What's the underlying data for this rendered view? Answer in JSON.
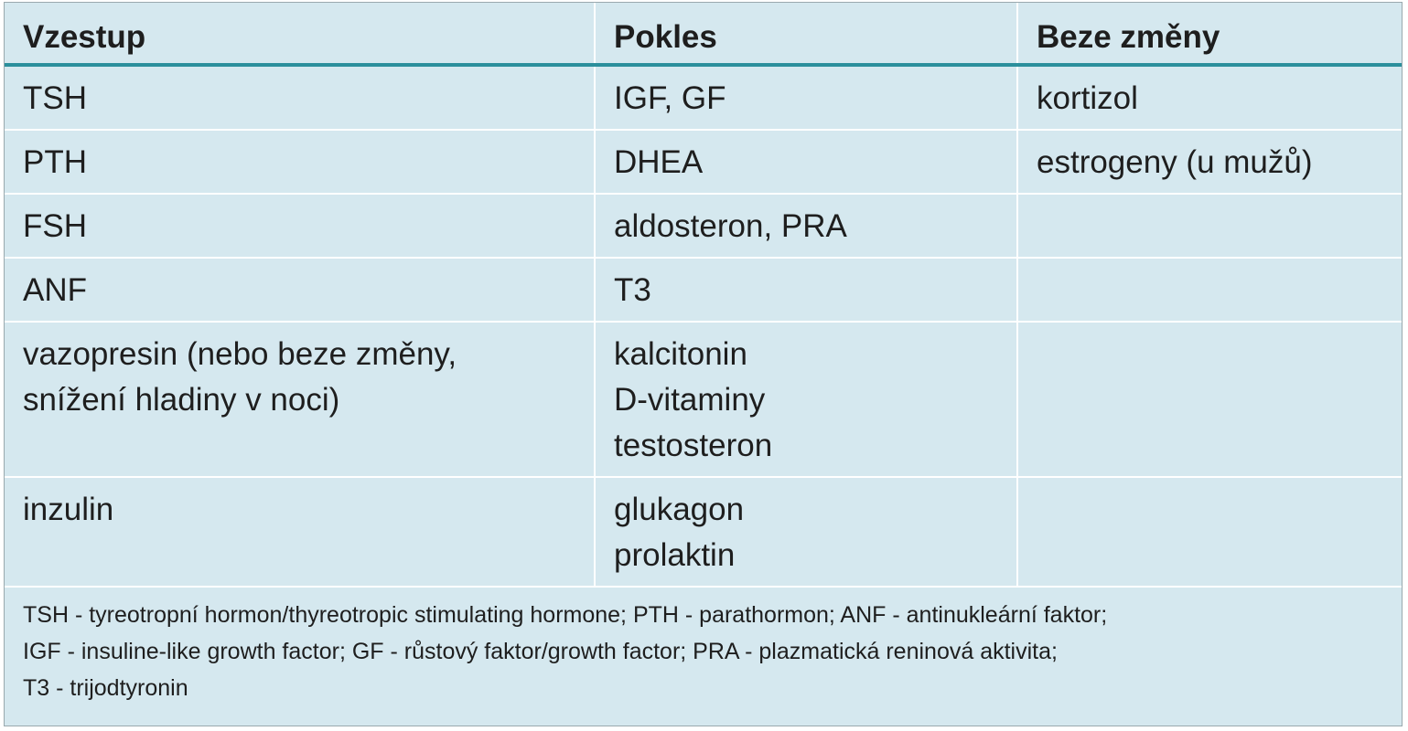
{
  "table": {
    "header": [
      "Vzestup",
      "Pokles",
      "Beze změny"
    ],
    "rows": [
      [
        [
          "TSH"
        ],
        [
          "IGF, GF"
        ],
        [
          "kortizol"
        ]
      ],
      [
        [
          "PTH"
        ],
        [
          "DHEA"
        ],
        [
          "estrogeny (u mužů)"
        ]
      ],
      [
        [
          "FSH"
        ],
        [
          "aldosteron, PRA"
        ],
        []
      ],
      [
        [
          "ANF"
        ],
        [
          "T3"
        ],
        []
      ],
      [
        [
          "vazopresin (nebo beze změny,",
          "snížení hladiny v noci)"
        ],
        [
          "kalcitonin",
          "D-vitaminy",
          "testosteron"
        ],
        []
      ],
      [
        [
          "inzulin"
        ],
        [
          "glukagon",
          "prolaktin"
        ],
        []
      ]
    ],
    "footnote": [
      "TSH - tyreotropní hormon/thyreotropic stimulating hormone; PTH - parathormon; ANF - antinukleární faktor;",
      "IGF - insuline-like growth factor; GF - růstový faktor/growth factor; PRA - plazmatická reninová aktivita;",
      "T3 - trijodtyronin"
    ]
  }
}
